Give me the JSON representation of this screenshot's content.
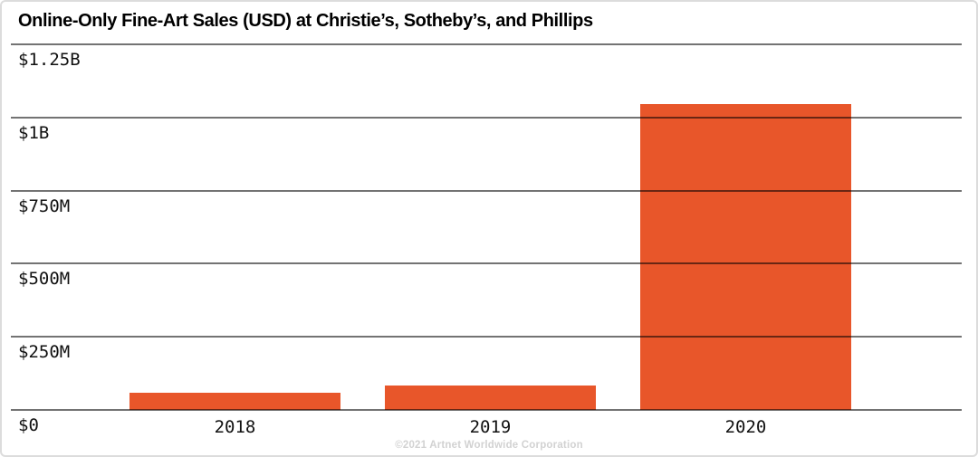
{
  "title": "Online-Only Fine-Art Sales (USD) at Christie’s, Sotheby’s, and Phillips",
  "footer": "©2021 Artnet Worldwide Corporation",
  "colors": {
    "bar": "#E8562A",
    "gridline_overlay": "rgba(0,0,0,0.55)",
    "axis_text": "#111111",
    "title_text": "#000000",
    "footer_text": "#d2d2d2",
    "background": "#ffffff",
    "panel_border": "#dcdcdc"
  },
  "chart_data": {
    "type": "bar",
    "title": "Online-Only Fine-Art Sales (USD) at Christie’s, Sotheby’s, and Phillips",
    "categories": [
      "2018",
      "2019",
      "2020"
    ],
    "values": [
      60,
      85,
      1045
    ],
    "values_unit": "USD millions",
    "xlabel": "",
    "ylabel": "",
    "ylim": [
      0,
      1250
    ],
    "yticks": [
      {
        "value": 1250,
        "label": "$1.25B"
      },
      {
        "value": 1000,
        "label": "$1B"
      },
      {
        "value": 750,
        "label": "$750M"
      },
      {
        "value": 500,
        "label": "$500M"
      },
      {
        "value": 250,
        "label": "$250M"
      },
      {
        "value": 0,
        "label": "$0"
      }
    ],
    "grid": true,
    "legend": false,
    "bar_color": "#E8562A"
  }
}
